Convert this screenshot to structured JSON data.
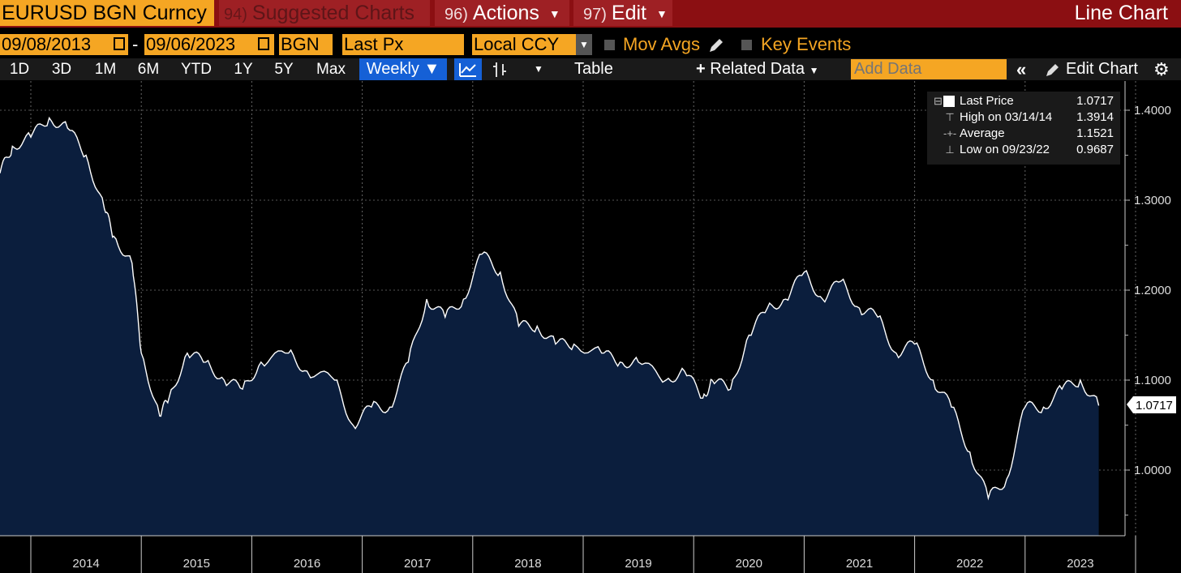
{
  "title_bar": {
    "security": "EURUSD BGN Curncy",
    "suggested_num": "94)",
    "suggested_label": "Suggested Charts",
    "actions_num": "96)",
    "actions_label": "Actions",
    "edit_num": "97)",
    "edit_label": "Edit",
    "chart_type": "Line Chart"
  },
  "controls": {
    "start_date": "09/08/2013",
    "date_separator": "-",
    "end_date": "09/06/2023",
    "source": "BGN",
    "field": "Last Px",
    "currency": "Local CCY",
    "mov_avgs": "Mov Avgs",
    "key_events": "Key Events"
  },
  "toolbar": {
    "ranges": [
      "1D",
      "3D",
      "1M",
      "6M",
      "YTD",
      "1Y",
      "5Y",
      "Max"
    ],
    "frequency": "Weekly",
    "table": "Table",
    "related_data": "Related Data",
    "add_data_placeholder": "Add Data",
    "edit_chart": "Edit Chart"
  },
  "legend": {
    "last_price_label": "Last Price",
    "last_price_value": "1.0717",
    "high_label": "High on 03/14/14",
    "high_value": "1.3914",
    "average_label": "Average",
    "average_value": "1.1521",
    "low_label": "Low on 09/23/22",
    "low_value": "0.9687"
  },
  "colors": {
    "accent_orange": "#f5a623",
    "title_bar": "#8b0f12",
    "area_fill": "#0b1e3d",
    "line": "#ffffff",
    "selected_blue": "#1560d6"
  },
  "chart_data": {
    "type": "area",
    "series": [
      {
        "name": "Last Price",
        "x": [
          "2013-09",
          "2013-11",
          "2014-01",
          "2014-03",
          "2014-05",
          "2014-07",
          "2014-09",
          "2014-10",
          "2014-12",
          "2015-01",
          "2015-03",
          "2015-04",
          "2015-06",
          "2015-08",
          "2015-10",
          "2015-12",
          "2016-02",
          "2016-05",
          "2016-07",
          "2016-10",
          "2016-12",
          "2017-02",
          "2017-04",
          "2017-06",
          "2017-08",
          "2017-10",
          "2017-12",
          "2018-02",
          "2018-04",
          "2018-06",
          "2018-08",
          "2018-10",
          "2018-12",
          "2019-03",
          "2019-05",
          "2019-07",
          "2019-10",
          "2019-12",
          "2020-02",
          "2020-03",
          "2020-05",
          "2020-07",
          "2020-09",
          "2020-11",
          "2021-01",
          "2021-03",
          "2021-05",
          "2021-07",
          "2021-09",
          "2021-11",
          "2022-01",
          "2022-03",
          "2022-05",
          "2022-07",
          "2022-09",
          "2022-11",
          "2023-01",
          "2023-03",
          "2023-05",
          "2023-07",
          "2023-09"
        ],
        "y": [
          1.33,
          1.36,
          1.37,
          1.3914,
          1.38,
          1.35,
          1.29,
          1.26,
          1.23,
          1.13,
          1.06,
          1.08,
          1.13,
          1.12,
          1.1,
          1.09,
          1.12,
          1.13,
          1.11,
          1.1,
          1.05,
          1.07,
          1.07,
          1.12,
          1.19,
          1.17,
          1.19,
          1.24,
          1.22,
          1.16,
          1.16,
          1.14,
          1.14,
          1.13,
          1.12,
          1.12,
          1.1,
          1.11,
          1.08,
          1.1,
          1.09,
          1.15,
          1.18,
          1.19,
          1.22,
          1.19,
          1.21,
          1.18,
          1.17,
          1.13,
          1.14,
          1.1,
          1.07,
          1.02,
          0.9687,
          0.99,
          1.07,
          1.07,
          1.09,
          1.1,
          1.0717
        ]
      }
    ],
    "x_labels": [
      "2014",
      "2015",
      "2016",
      "2017",
      "2018",
      "2019",
      "2020",
      "2021",
      "2022",
      "2023"
    ],
    "y_ticks": [
      "1.0000",
      "1.1000",
      "1.2000",
      "1.3000",
      "1.4000"
    ],
    "y_tick_values": [
      1.0,
      1.1,
      1.2,
      1.3,
      1.4
    ],
    "ylim": [
      0.93,
      1.43
    ],
    "last_value_tag": "1.0717",
    "grid": true,
    "legend_position": "top-right"
  }
}
